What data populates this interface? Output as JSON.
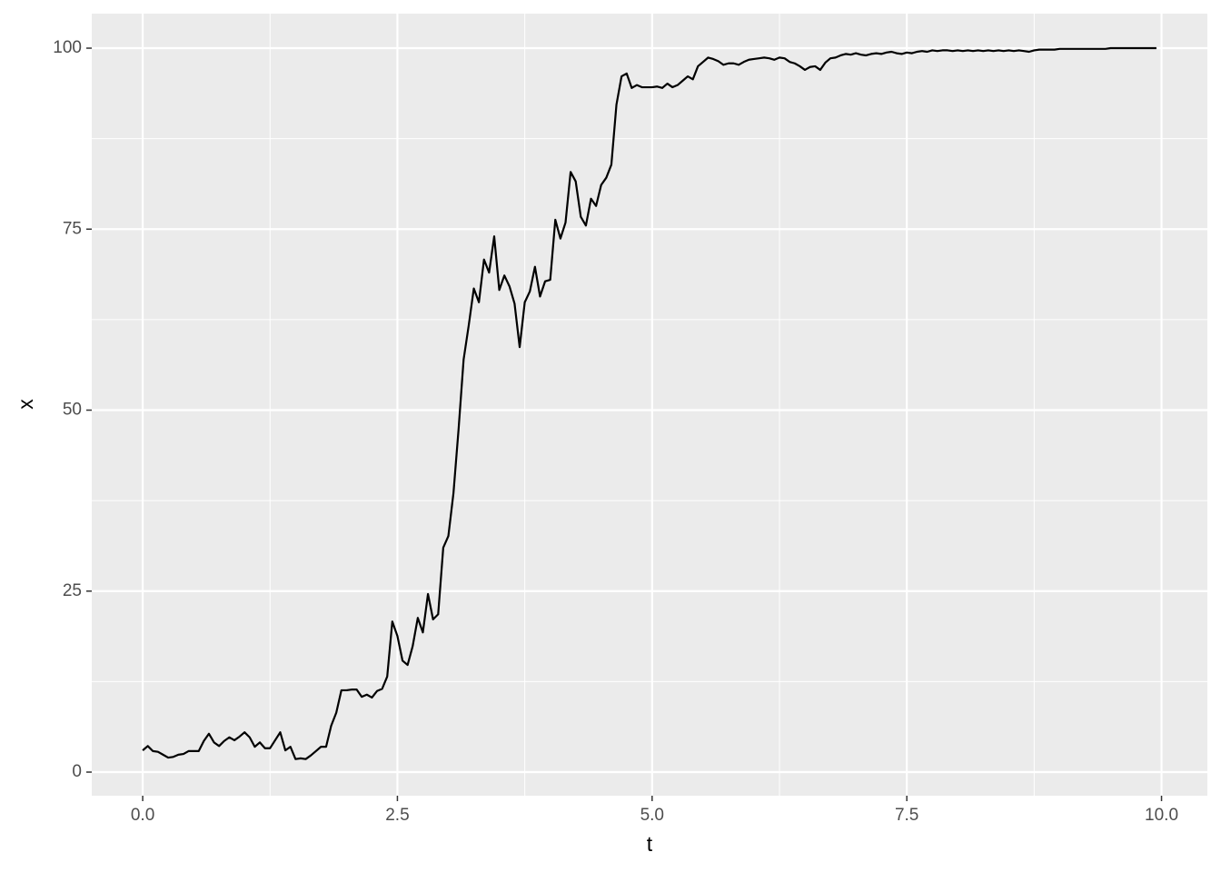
{
  "chart_data": {
    "type": "line",
    "xlabel": "t",
    "ylabel": "x",
    "color": "#000000",
    "x": [
      0,
      0.05,
      0.1,
      0.15,
      0.2,
      0.25,
      0.3,
      0.35,
      0.4,
      0.45,
      0.5,
      0.55,
      0.6,
      0.65,
      0.7,
      0.75,
      0.8,
      0.85,
      0.9,
      0.95,
      1,
      1.05,
      1.1,
      1.15,
      1.2,
      1.25,
      1.3,
      1.35,
      1.4,
      1.45,
      1.5,
      1.55,
      1.6,
      1.65,
      1.7,
      1.75,
      1.8,
      1.85,
      1.9,
      1.95,
      2,
      2.05,
      2.1,
      2.15,
      2.2,
      2.25,
      2.3,
      2.35,
      2.4,
      2.45,
      2.5,
      2.55,
      2.6,
      2.65,
      2.7,
      2.75,
      2.8,
      2.85,
      2.9,
      2.95,
      3,
      3.05,
      3.1,
      3.15,
      3.2,
      3.25,
      3.3,
      3.35,
      3.4,
      3.45,
      3.5,
      3.55,
      3.6,
      3.65,
      3.7,
      3.75,
      3.8,
      3.85,
      3.9,
      3.95,
      4,
      4.05,
      4.1,
      4.15,
      4.2,
      4.25,
      4.3,
      4.35,
      4.4,
      4.45,
      4.5,
      4.55,
      4.6,
      4.65,
      4.7,
      4.75,
      4.8,
      4.85,
      4.9,
      4.95,
      5,
      5.05,
      5.1,
      5.15,
      5.2,
      5.25,
      5.3,
      5.35,
      5.4,
      5.45,
      5.5,
      5.55,
      5.6,
      5.65,
      5.7,
      5.75,
      5.8,
      5.85,
      5.9,
      5.95,
      6,
      6.05,
      6.1,
      6.15,
      6.2,
      6.25,
      6.3,
      6.35,
      6.4,
      6.45,
      6.5,
      6.55,
      6.6,
      6.65,
      6.7,
      6.75,
      6.8,
      6.85,
      6.9,
      6.95,
      7,
      7.05,
      7.1,
      7.15,
      7.2,
      7.25,
      7.3,
      7.35,
      7.4,
      7.45,
      7.5,
      7.55,
      7.6,
      7.65,
      7.7,
      7.75,
      7.8,
      7.85,
      7.9,
      7.95,
      8,
      8.05,
      8.1,
      8.15,
      8.2,
      8.25,
      8.3,
      8.35,
      8.4,
      8.45,
      8.5,
      8.55,
      8.6,
      8.65,
      8.7,
      8.75,
      8.8,
      8.85,
      8.9,
      8.95,
      9,
      9.05,
      9.1,
      9.15,
      9.2,
      9.25,
      9.3,
      9.35,
      9.4,
      9.45,
      9.5,
      9.55,
      9.6,
      9.65,
      9.7,
      9.75,
      9.8,
      9.85,
      9.9,
      9.95
    ],
    "values": [
      3.0,
      3.6,
      2.9,
      2.8,
      2.4,
      2.0,
      2.1,
      2.4,
      2.5,
      2.9,
      2.9,
      2.9,
      4.3,
      5.3,
      4.1,
      3.6,
      4.3,
      4.8,
      4.4,
      4.9,
      5.5,
      4.8,
      3.5,
      4.1,
      3.3,
      3.3,
      4.4,
      5.5,
      3.0,
      3.5,
      1.8,
      1.9,
      1.8,
      2.3,
      2.9,
      3.5,
      3.5,
      6.4,
      8.2,
      11.3,
      11.3,
      11.4,
      11.4,
      10.4,
      10.7,
      10.3,
      11.2,
      11.5,
      13.2,
      20.8,
      18.8,
      15.4,
      14.8,
      17.4,
      21.3,
      19.3,
      24.6,
      21.1,
      21.8,
      31.0,
      32.6,
      38.5,
      47.3,
      57.0,
      61.7,
      66.8,
      64.9,
      70.8,
      69.0,
      74.0,
      66.6,
      68.6,
      67.1,
      64.7,
      58.7,
      64.9,
      66.4,
      69.8,
      65.7,
      67.8,
      68.0,
      76.3,
      73.7,
      75.9,
      82.9,
      81.6,
      76.7,
      75.5,
      79.2,
      78.2,
      81.1,
      82.1,
      83.9,
      92.2,
      96.1,
      96.5,
      94.5,
      94.9,
      94.6,
      94.6,
      94.6,
      94.7,
      94.5,
      95.1,
      94.6,
      94.9,
      95.5,
      96.1,
      95.7,
      97.5,
      98.1,
      98.7,
      98.5,
      98.2,
      97.7,
      97.9,
      97.9,
      97.7,
      98.1,
      98.4,
      98.5,
      98.6,
      98.7,
      98.6,
      98.4,
      98.7,
      98.6,
      98.1,
      97.9,
      97.5,
      97.0,
      97.4,
      97.5,
      97.0,
      98.0,
      98.6,
      98.7,
      99.0,
      99.2,
      99.1,
      99.3,
      99.1,
      99.0,
      99.2,
      99.3,
      99.2,
      99.4,
      99.5,
      99.3,
      99.2,
      99.4,
      99.3,
      99.5,
      99.6,
      99.5,
      99.7,
      99.6,
      99.7,
      99.7,
      99.6,
      99.7,
      99.6,
      99.7,
      99.6,
      99.7,
      99.6,
      99.7,
      99.6,
      99.7,
      99.6,
      99.7,
      99.6,
      99.7,
      99.6,
      99.5,
      99.7,
      99.8,
      99.8,
      99.8,
      99.8,
      99.9,
      99.9,
      99.9,
      99.9,
      99.9,
      99.9,
      99.9,
      99.9,
      99.9,
      99.9,
      100,
      100,
      100,
      100,
      100,
      100,
      100,
      100,
      100,
      100
    ],
    "xlim": [
      -0.5,
      10.45
    ],
    "ylim": [
      -3.26,
      104.77
    ],
    "xticks": [
      {
        "value": 0,
        "label": "0.0"
      },
      2.5,
      {
        "value": 5,
        "label": "5.0"
      },
      7.5,
      {
        "value": 10,
        "label": "10.0"
      }
    ],
    "yticks": [
      0,
      25,
      50,
      75,
      100
    ],
    "grid": true,
    "minor_grid": true
  }
}
